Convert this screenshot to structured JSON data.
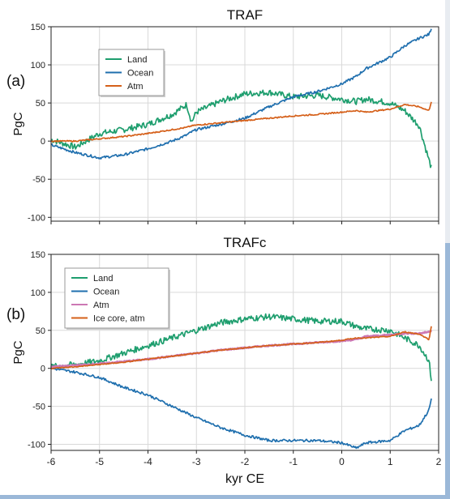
{
  "figure": {
    "xlabel": "kyr CE",
    "ylabel": "PgC"
  },
  "colors": {
    "land": "#1e9e6e",
    "ocean": "#1f6fae",
    "atm": "#d5601a",
    "atm_pink": "#cc78b4",
    "background": "#9bb8d8"
  },
  "chart_data": [
    {
      "type": "line",
      "panel_label": "(a)",
      "title": "TRAF",
      "xlabel": "",
      "ylabel": "PgC",
      "xlim": [
        -6,
        2
      ],
      "ylim": [
        -105,
        150
      ],
      "yticks": [
        150,
        100,
        50,
        0,
        -50,
        -100
      ],
      "xticks": [],
      "grid": true,
      "legend_position": "upper-left",
      "x": [
        -6,
        -5.5,
        -5,
        -4.5,
        -4,
        -3.5,
        -3.2,
        -3.1,
        -3,
        -2.5,
        -2,
        -1.5,
        -1,
        -0.5,
        0,
        0.3,
        0.5,
        1,
        1.3,
        1.6,
        1.8,
        1.85
      ],
      "series": [
        {
          "name": "Land",
          "color": "#1e9e6e",
          "values": [
            2,
            -8,
            10,
            15,
            22,
            35,
            48,
            25,
            38,
            52,
            62,
            64,
            58,
            60,
            55,
            52,
            55,
            50,
            40,
            20,
            -25,
            -35
          ]
        },
        {
          "name": "Ocean",
          "color": "#1f6fae",
          "values": [
            -5,
            -15,
            -22,
            -18,
            -10,
            0,
            8,
            12,
            15,
            22,
            30,
            45,
            58,
            65,
            75,
            85,
            95,
            110,
            125,
            135,
            140,
            148
          ]
        },
        {
          "name": "Atm",
          "color": "#d5601a",
          "values": [
            0,
            0,
            3,
            6,
            10,
            15,
            18,
            20,
            21,
            24,
            27,
            30,
            33,
            35,
            38,
            40,
            38,
            42,
            48,
            45,
            40,
            52
          ]
        }
      ]
    },
    {
      "type": "line",
      "panel_label": "(b)",
      "title": "TRAFc",
      "xlabel": "kyr CE",
      "ylabel": "PgC",
      "xlim": [
        -6,
        2
      ],
      "ylim": [
        -108,
        150
      ],
      "yticks": [
        150,
        100,
        50,
        0,
        -50,
        -100
      ],
      "xticks": [
        -6,
        -5,
        -4,
        -3,
        -2,
        -1,
        0,
        1,
        2
      ],
      "grid": true,
      "legend_position": "upper-left",
      "x": [
        -6,
        -5.5,
        -5,
        -4.5,
        -4,
        -3.5,
        -3,
        -2.5,
        -2,
        -1.5,
        -1,
        -0.5,
        0,
        0.3,
        0.5,
        1,
        1.3,
        1.6,
        1.8,
        1.85
      ],
      "series": [
        {
          "name": "Land",
          "color": "#1e9e6e",
          "values": [
            2,
            5,
            10,
            20,
            30,
            40,
            50,
            60,
            65,
            68,
            65,
            62,
            62,
            55,
            52,
            50,
            40,
            30,
            10,
            -15
          ]
        },
        {
          "name": "Ocean",
          "color": "#1f6fae",
          "values": [
            0,
            -5,
            -12,
            -25,
            -35,
            -50,
            -65,
            -78,
            -88,
            -95,
            -95,
            -95,
            -98,
            -105,
            -98,
            -95,
            -82,
            -75,
            -55,
            -40
          ]
        },
        {
          "name": "Atm",
          "color": "#cc78b4",
          "values": [
            2,
            4,
            6,
            9,
            12,
            16,
            20,
            24,
            27,
            30,
            32,
            34,
            36,
            38,
            42,
            44,
            46,
            46,
            48,
            50
          ]
        },
        {
          "name": "Ice core, atm",
          "color": "#d5601a",
          "values": [
            0,
            2,
            5,
            8,
            12,
            16,
            20,
            24,
            27,
            30,
            32,
            34,
            37,
            40,
            40,
            42,
            48,
            45,
            38,
            55
          ]
        }
      ]
    }
  ]
}
